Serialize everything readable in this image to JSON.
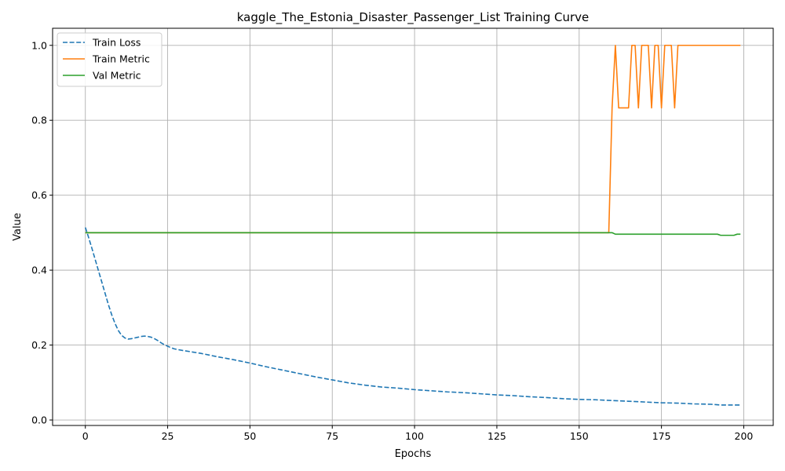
{
  "chart_data": {
    "type": "line",
    "title": "kaggle_The_Estonia_Disaster_Passenger_List Training Curve",
    "xlabel": "Epochs",
    "ylabel": "Value",
    "xlim": [
      -9.95,
      208.95
    ],
    "ylim": [
      -0.0146,
      1.0456
    ],
    "xticks": [
      0,
      25,
      50,
      75,
      100,
      125,
      150,
      175,
      200
    ],
    "yticks": [
      0.0,
      0.2,
      0.4,
      0.6,
      0.8,
      1.0
    ],
    "grid": true,
    "legend_position": "top-left",
    "series": [
      {
        "name": "Train Loss",
        "color": "#1f77b4",
        "style": "dashed",
        "points": [
          [
            0,
            0.514
          ],
          [
            1,
            0.487
          ],
          [
            2,
            0.458
          ],
          [
            3,
            0.428
          ],
          [
            4,
            0.398
          ],
          [
            5,
            0.368
          ],
          [
            6,
            0.338
          ],
          [
            7,
            0.308
          ],
          [
            8,
            0.281
          ],
          [
            9,
            0.258
          ],
          [
            10,
            0.239
          ],
          [
            11,
            0.226
          ],
          [
            12,
            0.219
          ],
          [
            13,
            0.216
          ],
          [
            14,
            0.217
          ],
          [
            15,
            0.219
          ],
          [
            16,
            0.221
          ],
          [
            17,
            0.223
          ],
          [
            18,
            0.224
          ],
          [
            19,
            0.223
          ],
          [
            20,
            0.221
          ],
          [
            21,
            0.217
          ],
          [
            22,
            0.212
          ],
          [
            23,
            0.206
          ],
          [
            24,
            0.201
          ],
          [
            25,
            0.197
          ],
          [
            26,
            0.193
          ],
          [
            27,
            0.19
          ],
          [
            28,
            0.188
          ],
          [
            30,
            0.185
          ],
          [
            35,
            0.178
          ],
          [
            40,
            0.169
          ],
          [
            45,
            0.161
          ],
          [
            50,
            0.152
          ],
          [
            55,
            0.142
          ],
          [
            60,
            0.133
          ],
          [
            65,
            0.124
          ],
          [
            70,
            0.115
          ],
          [
            75,
            0.107
          ],
          [
            80,
            0.099
          ],
          [
            85,
            0.093
          ],
          [
            90,
            0.088
          ],
          [
            95,
            0.085
          ],
          [
            100,
            0.081
          ],
          [
            105,
            0.078
          ],
          [
            110,
            0.075
          ],
          [
            115,
            0.073
          ],
          [
            120,
            0.07
          ],
          [
            125,
            0.067
          ],
          [
            130,
            0.065
          ],
          [
            135,
            0.062
          ],
          [
            140,
            0.06
          ],
          [
            145,
            0.057
          ],
          [
            150,
            0.055
          ],
          [
            155,
            0.054
          ],
          [
            160,
            0.052
          ],
          [
            165,
            0.05
          ],
          [
            170,
            0.048
          ],
          [
            175,
            0.046
          ],
          [
            180,
            0.045
          ],
          [
            185,
            0.043
          ],
          [
            190,
            0.042
          ],
          [
            193,
            0.04
          ],
          [
            196,
            0.04
          ],
          [
            199,
            0.04
          ]
        ]
      },
      {
        "name": "Train Metric",
        "color": "#ff7f0e",
        "style": "solid",
        "points": [
          [
            0,
            0.5
          ],
          [
            159,
            0.5
          ],
          [
            160,
            0.833
          ],
          [
            161,
            1.0
          ],
          [
            162,
            0.833
          ],
          [
            163,
            0.833
          ],
          [
            164,
            0.833
          ],
          [
            165,
            0.833
          ],
          [
            166,
            1.0
          ],
          [
            167,
            1.0
          ],
          [
            168,
            0.833
          ],
          [
            169,
            1.0
          ],
          [
            170,
            1.0
          ],
          [
            171,
            1.0
          ],
          [
            172,
            0.833
          ],
          [
            173,
            1.0
          ],
          [
            174,
            1.0
          ],
          [
            175,
            0.833
          ],
          [
            176,
            1.0
          ],
          [
            177,
            1.0
          ],
          [
            178,
            1.0
          ],
          [
            179,
            0.833
          ],
          [
            180,
            1.0
          ],
          [
            181,
            1.0
          ],
          [
            199,
            1.0
          ]
        ]
      },
      {
        "name": "Val Metric",
        "color": "#2ca02c",
        "style": "solid",
        "points": [
          [
            0,
            0.5
          ],
          [
            160,
            0.5
          ],
          [
            161,
            0.496
          ],
          [
            192,
            0.496
          ],
          [
            193,
            0.493
          ],
          [
            197,
            0.493
          ],
          [
            198,
            0.496
          ],
          [
            199,
            0.496
          ]
        ]
      }
    ]
  }
}
